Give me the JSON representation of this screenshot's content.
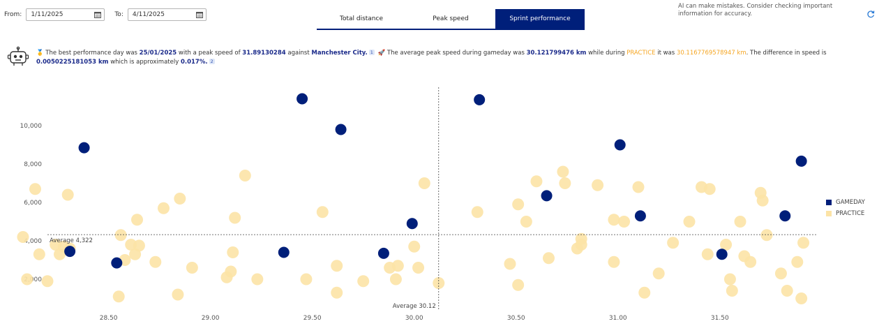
{
  "filters": {
    "from_label": "From:",
    "from_value": "1/11/2025",
    "to_label": "To:",
    "to_value": "4/11/2025"
  },
  "tabs": [
    {
      "label": "Total distance",
      "active": false
    },
    {
      "label": "Peak speed",
      "active": false
    },
    {
      "label": "Sprint performance",
      "active": true
    }
  ],
  "disclaimer": "AI can make mistakes. Consider checking important information for accuracy.",
  "insight": {
    "emoji": "🥇",
    "t1": "The best performance day was",
    "best_day": "25/01/2025",
    "t2": "with a peak speed of",
    "peak_speed": "31.89130284",
    "t3": "against",
    "opponent": "Manchester City.",
    "ref1": "1",
    "emoji2": "🚀",
    "t4": "The average peak speed during gameday was",
    "gameday_avg": "30.121799476 km",
    "t5": "while during",
    "practice_word": "PRACTICE",
    "t6": "it was",
    "practice_avg": "30.1167769578947 km",
    "t7": ". The difference in speed is",
    "diff": "0.0050225181053 km",
    "t8": "which is approximately",
    "pct": "0.017%.",
    "ref2": "2"
  },
  "colors": {
    "gameday": "#001f7a",
    "practice": "#fce3a6",
    "accent": "#001f7a"
  },
  "chart_data": {
    "type": "scatter",
    "xlim": [
      28.2,
      31.98
    ],
    "ylim": [
      0,
      12000
    ],
    "x_ticks": [
      28.5,
      29.0,
      29.5,
      30.0,
      30.5,
      31.0,
      31.5
    ],
    "x_tick_labels": [
      "28.50",
      "29.00",
      "29.50",
      "30.00",
      "30.50",
      "31.00",
      "31.50"
    ],
    "y_ticks": [
      2000,
      4000,
      6000,
      8000,
      10000
    ],
    "y_tick_labels": [
      "2,000",
      "4,000",
      "6,000",
      "8,000",
      "10,000"
    ],
    "avg_x": 30.12,
    "avg_y": 4322,
    "avg_x_label": "Average 30.12",
    "avg_y_label": "Average 4,322",
    "legend_position": "right",
    "series": [
      {
        "name": "GAMEDAY",
        "color": "#001f7a",
        "points": [
          [
            28.38,
            8850
          ],
          [
            28.31,
            3450
          ],
          [
            28.54,
            2850
          ],
          [
            29.36,
            3400
          ],
          [
            29.45,
            11400
          ],
          [
            29.64,
            9800
          ],
          [
            29.85,
            3350
          ],
          [
            29.99,
            4900
          ],
          [
            30.32,
            11350
          ],
          [
            30.65,
            6350
          ],
          [
            31.01,
            9000
          ],
          [
            31.11,
            5300
          ],
          [
            31.51,
            3300
          ],
          [
            31.82,
            5300
          ],
          [
            31.9,
            8150
          ]
        ]
      },
      {
        "name": "PRACTICE",
        "color": "#fce3a6",
        "points": [
          [
            28.08,
            4200
          ],
          [
            28.1,
            2000
          ],
          [
            28.14,
            6700
          ],
          [
            28.16,
            3300
          ],
          [
            28.2,
            1900
          ],
          [
            28.24,
            3800
          ],
          [
            28.26,
            3300
          ],
          [
            28.28,
            3700
          ],
          [
            28.3,
            6400
          ],
          [
            28.31,
            3600
          ],
          [
            28.55,
            1100
          ],
          [
            28.56,
            4300
          ],
          [
            28.58,
            3000
          ],
          [
            28.61,
            3800
          ],
          [
            28.63,
            3300
          ],
          [
            28.64,
            5100
          ],
          [
            28.65,
            3750
          ],
          [
            28.73,
            2900
          ],
          [
            28.77,
            5700
          ],
          [
            28.84,
            1200
          ],
          [
            28.85,
            6200
          ],
          [
            28.91,
            2600
          ],
          [
            29.08,
            2100
          ],
          [
            29.1,
            2400
          ],
          [
            29.11,
            3400
          ],
          [
            29.12,
            5200
          ],
          [
            29.17,
            7400
          ],
          [
            29.23,
            2000
          ],
          [
            29.47,
            2000
          ],
          [
            29.55,
            5500
          ],
          [
            29.62,
            2700
          ],
          [
            29.62,
            1300
          ],
          [
            29.75,
            1900
          ],
          [
            29.88,
            2600
          ],
          [
            29.91,
            2000
          ],
          [
            29.92,
            2700
          ],
          [
            30.0,
            3700
          ],
          [
            30.02,
            2600
          ],
          [
            30.05,
            7000
          ],
          [
            30.12,
            1800
          ],
          [
            30.31,
            5500
          ],
          [
            30.47,
            2800
          ],
          [
            30.51,
            1700
          ],
          [
            30.51,
            5900
          ],
          [
            30.55,
            5000
          ],
          [
            30.6,
            7100
          ],
          [
            30.66,
            3100
          ],
          [
            30.73,
            7600
          ],
          [
            30.74,
            7000
          ],
          [
            30.8,
            3600
          ],
          [
            30.82,
            4100
          ],
          [
            30.82,
            3800
          ],
          [
            30.9,
            6900
          ],
          [
            30.98,
            2900
          ],
          [
            30.98,
            5100
          ],
          [
            31.03,
            5000
          ],
          [
            31.1,
            6800
          ],
          [
            31.13,
            1300
          ],
          [
            31.2,
            2300
          ],
          [
            31.27,
            3900
          ],
          [
            31.35,
            5000
          ],
          [
            31.41,
            6800
          ],
          [
            31.44,
            3300
          ],
          [
            31.45,
            6700
          ],
          [
            31.53,
            3800
          ],
          [
            31.55,
            2000
          ],
          [
            31.56,
            1400
          ],
          [
            31.6,
            5000
          ],
          [
            31.62,
            3200
          ],
          [
            31.65,
            2900
          ],
          [
            31.7,
            6500
          ],
          [
            31.71,
            6100
          ],
          [
            31.73,
            4300
          ],
          [
            31.8,
            2300
          ],
          [
            31.83,
            1400
          ],
          [
            31.88,
            2900
          ],
          [
            31.9,
            1000
          ],
          [
            31.91,
            3900
          ]
        ]
      }
    ]
  }
}
